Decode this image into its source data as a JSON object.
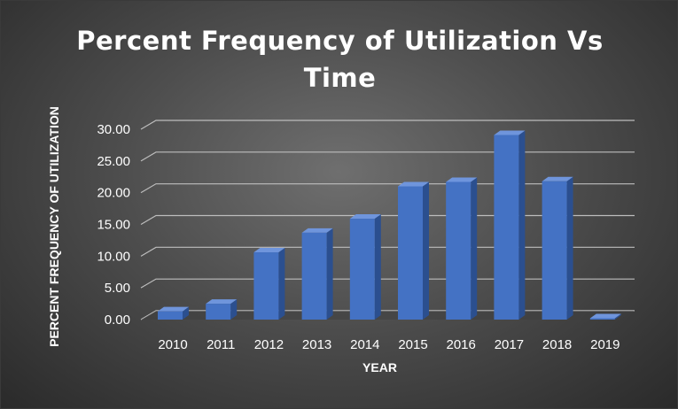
{
  "chart_data": {
    "type": "bar",
    "title_lines": [
      "Percent Frequency of Utilization Vs",
      "Time"
    ],
    "xlabel": "YEAR",
    "ylabel": "PERCENT FREQUENCY OF UTILIZATION",
    "categories": [
      "2010",
      "2011",
      "2012",
      "2013",
      "2014",
      "2015",
      "2016",
      "2017",
      "2018",
      "2019"
    ],
    "values": [
      1.3,
      2.5,
      10.6,
      13.7,
      15.9,
      21.0,
      21.7,
      29.1,
      21.8,
      0.0
    ],
    "yticks": [
      "0.00",
      "5.00",
      "10.00",
      "15.00",
      "20.00",
      "25.00",
      "30.00"
    ],
    "ylim": [
      0,
      30
    ],
    "grid": true,
    "legend": "none",
    "bar_color": "#4472c4",
    "background_color": "#4a4a4a"
  }
}
